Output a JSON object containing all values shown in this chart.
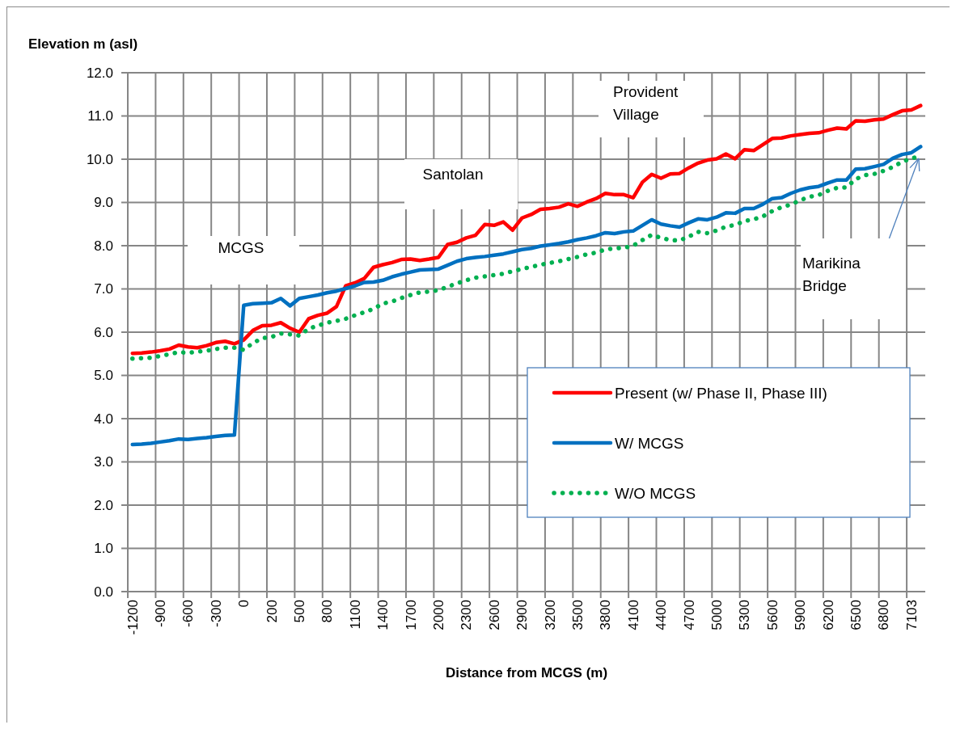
{
  "chart_data": {
    "type": "line",
    "xlabel": "Distance from MCGS (m)",
    "ylabel": "Elevation m (asl)",
    "categories": [
      "-1200",
      null,
      null,
      "-900",
      null,
      null,
      "-600",
      null,
      null,
      "-300",
      null,
      null,
      "0",
      null,
      null,
      "200",
      null,
      null,
      "500",
      null,
      null,
      "800",
      null,
      null,
      "1100",
      null,
      null,
      "1400",
      null,
      null,
      "1700",
      null,
      null,
      "2000",
      null,
      null,
      "2300",
      null,
      null,
      "2600",
      null,
      null,
      "2900",
      null,
      null,
      "3200",
      null,
      null,
      "3500",
      null,
      null,
      "3800",
      null,
      null,
      "4100",
      null,
      null,
      "4400",
      null,
      null,
      "4700",
      null,
      null,
      "5000",
      null,
      null,
      "5300",
      null,
      null,
      "5600",
      null,
      null,
      "5900",
      null,
      null,
      "6200",
      null,
      null,
      "6500",
      null,
      null,
      "6800",
      null,
      null,
      "7103",
      null
    ],
    "series": [
      {
        "name": "Present (w/ Phase II, Phase III)",
        "color": "#ff0000",
        "line_style": "solid",
        "values": [
          5.51,
          5.52,
          5.54,
          5.57,
          5.61,
          5.7,
          5.66,
          5.64,
          5.69,
          5.76,
          5.79,
          5.73,
          5.82,
          6.04,
          6.15,
          6.16,
          6.22,
          6.09,
          6.0,
          6.31,
          6.39,
          6.44,
          6.59,
          7.07,
          7.14,
          7.24,
          7.5,
          7.56,
          7.61,
          7.68,
          7.69,
          7.66,
          7.69,
          7.73,
          8.03,
          8.08,
          8.18,
          8.24,
          8.49,
          8.47,
          8.55,
          8.36,
          8.64,
          8.72,
          8.84,
          8.86,
          8.89,
          8.97,
          8.91,
          9.01,
          9.09,
          9.21,
          9.18,
          9.18,
          9.11,
          9.47,
          9.65,
          9.56,
          9.66,
          9.67,
          9.8,
          9.91,
          9.98,
          10.01,
          10.12,
          10.01,
          10.22,
          10.2,
          10.34,
          10.48,
          10.49,
          10.54,
          10.57,
          10.6,
          10.61,
          10.67,
          10.72,
          10.7,
          10.89,
          10.88,
          10.91,
          10.93,
          11.03,
          11.12,
          11.14,
          11.24
        ]
      },
      {
        "name": "W/ MCGS",
        "color": "#0070c0",
        "line_style": "solid",
        "values": [
          3.4,
          3.41,
          3.43,
          3.46,
          3.49,
          3.53,
          3.52,
          3.54,
          3.56,
          3.59,
          3.61,
          3.62,
          6.62,
          6.66,
          6.67,
          6.68,
          6.78,
          6.61,
          6.78,
          6.82,
          6.86,
          6.91,
          6.95,
          7.01,
          7.07,
          7.15,
          7.16,
          7.2,
          7.28,
          7.34,
          7.39,
          7.44,
          7.45,
          7.46,
          7.55,
          7.64,
          7.7,
          7.73,
          7.75,
          7.78,
          7.81,
          7.86,
          7.91,
          7.94,
          7.99,
          8.02,
          8.05,
          8.09,
          8.14,
          8.18,
          8.23,
          8.3,
          8.28,
          8.32,
          8.34,
          8.47,
          8.6,
          8.5,
          8.46,
          8.43,
          8.53,
          8.62,
          8.6,
          8.66,
          8.76,
          8.75,
          8.86,
          8.86,
          8.96,
          9.09,
          9.11,
          9.21,
          9.29,
          9.34,
          9.37,
          9.45,
          9.52,
          9.52,
          9.77,
          9.78,
          9.83,
          9.88,
          10.02,
          10.11,
          10.15,
          10.29
        ]
      },
      {
        "name": "W/O MCGS",
        "color": "#00b050",
        "line_style": "dotted",
        "values": [
          5.39,
          5.4,
          5.41,
          5.45,
          5.49,
          5.54,
          5.52,
          5.55,
          5.57,
          5.61,
          5.64,
          5.64,
          5.59,
          5.75,
          5.86,
          5.89,
          5.97,
          5.95,
          5.92,
          6.08,
          6.15,
          6.22,
          6.26,
          6.31,
          6.39,
          6.46,
          6.54,
          6.66,
          6.71,
          6.79,
          6.86,
          6.92,
          6.94,
          6.97,
          7.05,
          7.13,
          7.2,
          7.26,
          7.29,
          7.32,
          7.35,
          7.41,
          7.46,
          7.51,
          7.56,
          7.6,
          7.64,
          7.69,
          7.74,
          7.8,
          7.84,
          7.91,
          7.94,
          7.95,
          8.0,
          8.13,
          8.25,
          8.18,
          8.13,
          8.12,
          8.21,
          8.32,
          8.29,
          8.35,
          8.44,
          8.48,
          8.57,
          8.61,
          8.68,
          8.8,
          8.89,
          8.95,
          9.05,
          9.13,
          9.17,
          9.27,
          9.34,
          9.35,
          9.54,
          9.63,
          9.66,
          9.73,
          9.82,
          9.94,
          10.02,
          10.07
        ]
      }
    ],
    "ylim": [
      0,
      12
    ],
    "yticks": [
      {
        "value": 0,
        "label": "0.0"
      },
      {
        "value": 1,
        "label": "1.0"
      },
      {
        "value": 2,
        "label": "2.0"
      },
      {
        "value": 3,
        "label": "3.0"
      },
      {
        "value": 4,
        "label": "4.0"
      },
      {
        "value": 5,
        "label": "5.0"
      },
      {
        "value": 6,
        "label": "6.0"
      },
      {
        "value": 7,
        "label": "7.0"
      },
      {
        "value": 8,
        "label": "8.0"
      },
      {
        "value": 9,
        "label": "9.0"
      },
      {
        "value": 10,
        "label": "10.0"
      },
      {
        "value": 11,
        "label": "11.0"
      },
      {
        "value": 12,
        "label": "12.0"
      }
    ],
    "grid": true,
    "legend": "bottom right",
    "annotations": [
      "MCGS",
      "Santolan",
      "Provident\nVillage",
      "Marikina\nBridge"
    ]
  }
}
